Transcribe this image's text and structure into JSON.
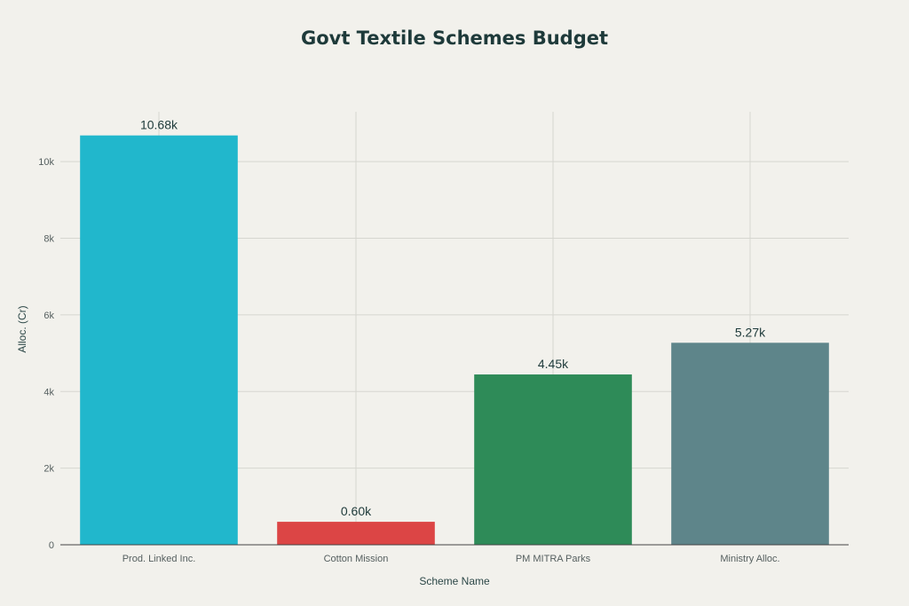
{
  "chart_data": {
    "type": "bar",
    "title": "Govt Textile Schemes Budget",
    "xlabel": "Scheme Name",
    "ylabel": "Alloc. (Cr)",
    "categories": [
      "Prod. Linked Inc.",
      "Cotton Mission",
      "PM MITRA Parks",
      "Ministry Alloc."
    ],
    "values": [
      10683,
      600,
      4445,
      5272
    ],
    "data_labels": [
      "10.68k",
      "0.60k",
      "4.45k",
      "5.27k"
    ],
    "colors": [
      "#21b7cc",
      "#dc4545",
      "#2e8b58",
      "#5e858a"
    ],
    "ylim": [
      0,
      11300
    ],
    "yticks": [
      0,
      2000,
      4000,
      6000,
      8000,
      10000
    ],
    "ytick_labels": [
      "0",
      "2k",
      "4k",
      "6k",
      "8k",
      "10k"
    ],
    "grid": true,
    "legend": "none"
  }
}
